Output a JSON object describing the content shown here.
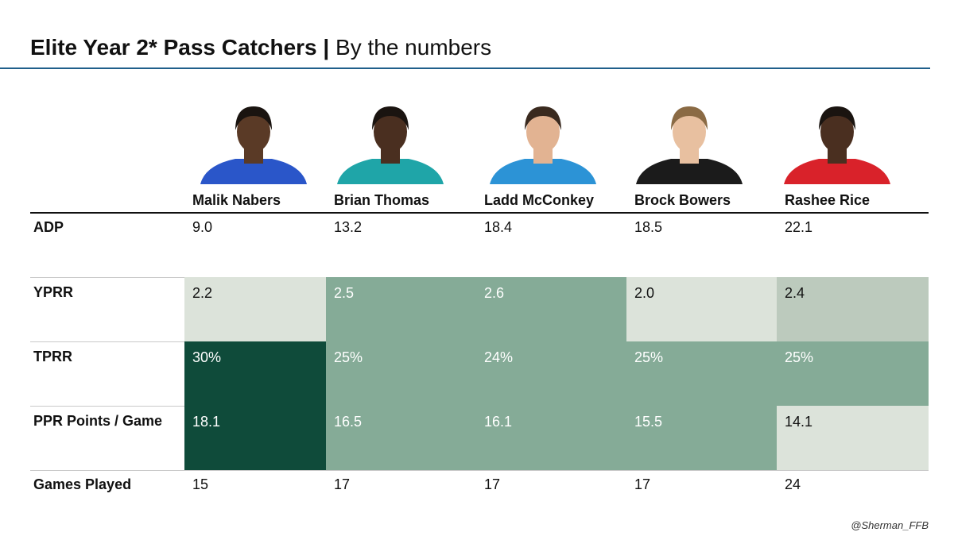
{
  "title": {
    "bold": "Elite Year 2* Pass Catchers |",
    "light": "By the numbers"
  },
  "players": [
    {
      "name": "Malik Nabers",
      "jersey": "#2a56c9",
      "skin": "#5a3a26",
      "hair": "#1a1410"
    },
    {
      "name": "Brian Thomas",
      "jersey": "#1fa5a8",
      "skin": "#4a2f20",
      "hair": "#1a1410"
    },
    {
      "name": "Ladd McConkey",
      "jersey": "#2c93d6",
      "skin": "#e2b392",
      "hair": "#3a2a1f"
    },
    {
      "name": "Brock Bowers",
      "jersey": "#1b1b1b",
      "skin": "#e8c0a0",
      "hair": "#8a6a44"
    },
    {
      "name": "Rashee Rice",
      "jersey": "#d9222a",
      "skin": "#4a2f20",
      "hair": "#1a1410"
    }
  ],
  "rows": {
    "adp": {
      "label": "ADP",
      "values": [
        "9.0",
        "13.2",
        "18.4",
        "18.5",
        "22.1"
      ]
    },
    "yprr": {
      "label": "YPRR",
      "values": [
        "2.2",
        "2.5",
        "2.6",
        "2.0",
        "2.4"
      ],
      "fills": [
        "#dce3da",
        "#85ab97",
        "#85ab97",
        "#dce3da",
        "#bccabd"
      ],
      "text": [
        "#111111",
        "#ffffff",
        "#ffffff",
        "#111111",
        "#111111"
      ]
    },
    "tprr": {
      "label": "TPRR",
      "values": [
        "30%",
        "25%",
        "24%",
        "25%",
        "25%"
      ],
      "fills": [
        "#0f4b3a",
        "#85ab97",
        "#85ab97",
        "#85ab97",
        "#85ab97"
      ],
      "text": [
        "#ffffff",
        "#ffffff",
        "#ffffff",
        "#ffffff",
        "#ffffff"
      ]
    },
    "ppr": {
      "label": "PPR Points / Game",
      "values": [
        "18.1",
        "16.5",
        "16.1",
        "15.5",
        "14.1"
      ],
      "fills": [
        "#0f4b3a",
        "#85ab97",
        "#85ab97",
        "#85ab97",
        "#dce3da"
      ],
      "text": [
        "#ffffff",
        "#ffffff",
        "#ffffff",
        "#ffffff",
        "#111111"
      ]
    },
    "games": {
      "label": "Games Played",
      "values": [
        "15",
        "17",
        "17",
        "17",
        "24"
      ]
    }
  },
  "footer": "@Sherman_FFB"
}
